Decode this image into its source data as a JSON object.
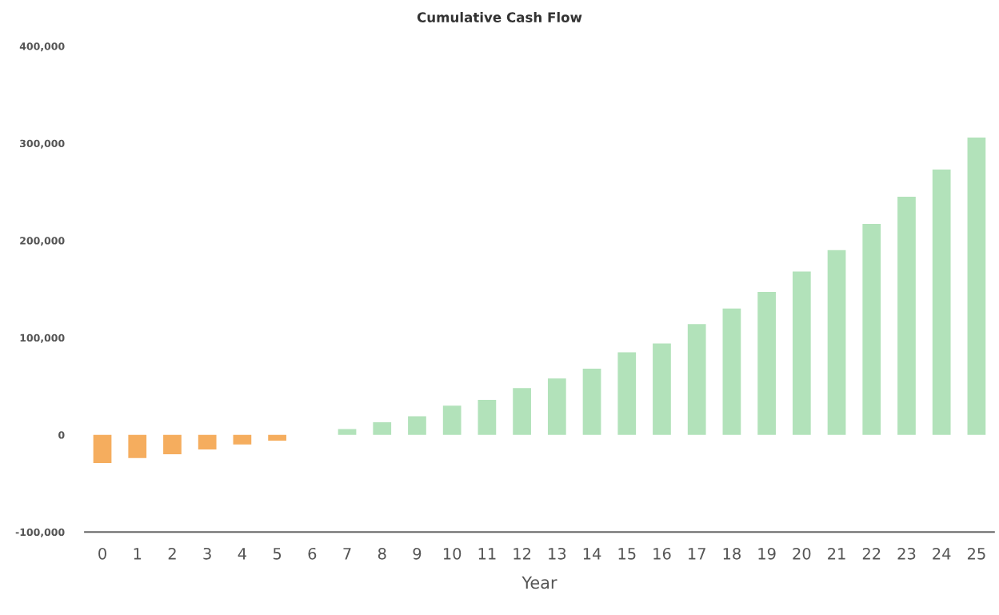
{
  "chart_data": {
    "type": "bar",
    "title": "Cumulative Cash Flow",
    "xlabel": "Year",
    "categories": [
      "0",
      "1",
      "2",
      "3",
      "4",
      "5",
      "6",
      "7",
      "8",
      "9",
      "10",
      "11",
      "12",
      "13",
      "14",
      "15",
      "16",
      "17",
      "18",
      "19",
      "20",
      "21",
      "22",
      "23",
      "24",
      "25"
    ],
    "values": [
      -29000,
      -24000,
      -20000,
      -15000,
      -10000,
      -6000,
      0,
      6000,
      13000,
      19000,
      30000,
      36000,
      48000,
      58000,
      68000,
      85000,
      94000,
      114000,
      130000,
      147000,
      168000,
      190000,
      217000,
      245000,
      273000,
      306000
    ],
    "colors": [
      "#f5ad5e",
      "#f5ad5e",
      "#f5ad5e",
      "#f5ad5e",
      "#f5ad5e",
      "#f5ad5e",
      "#f5ad5e",
      "#b2e2ba",
      "#b2e2ba",
      "#b2e2ba",
      "#b2e2ba",
      "#b2e2ba",
      "#b2e2ba",
      "#b2e2ba",
      "#b2e2ba",
      "#b2e2ba",
      "#b2e2ba",
      "#b2e2ba",
      "#b2e2ba",
      "#b2e2ba",
      "#b2e2ba",
      "#b2e2ba",
      "#b2e2ba",
      "#b2e2ba",
      "#b2e2ba",
      "#b2e2ba"
    ],
    "ylim": [
      -100000,
      400000
    ],
    "yticks": [
      {
        "value": -100000,
        "label": "-100,000"
      },
      {
        "value": 0,
        "label": "0"
      },
      {
        "value": 100000,
        "label": "100,000"
      },
      {
        "value": 200000,
        "label": "200,000"
      },
      {
        "value": 300000,
        "label": "300,000"
      },
      {
        "value": 400000,
        "label": "400,000"
      }
    ],
    "grid": false,
    "legend": false
  }
}
